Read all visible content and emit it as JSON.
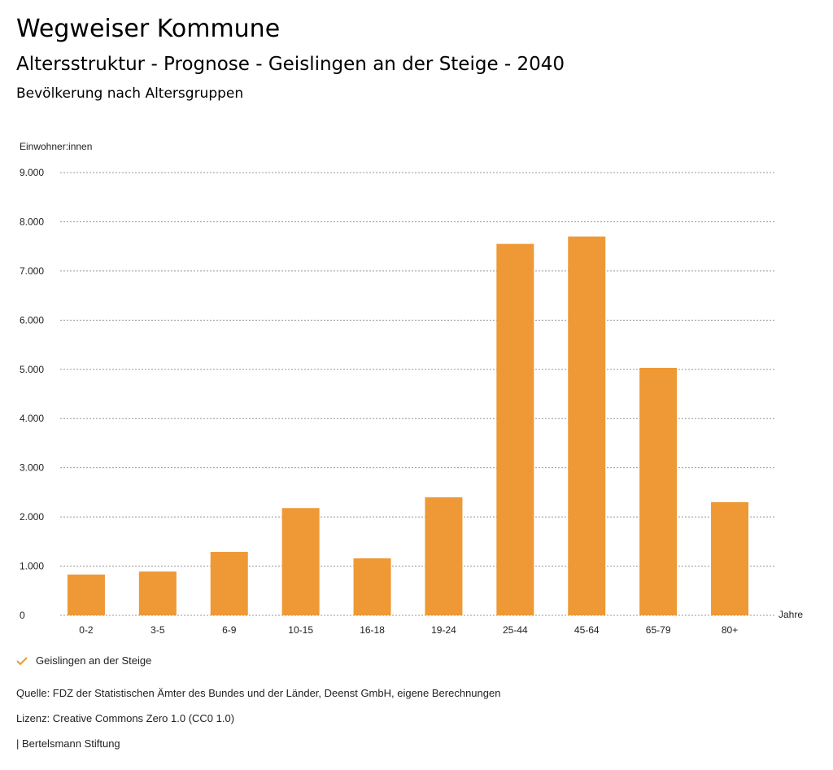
{
  "header": {
    "title": "Wegweiser Kommune",
    "subtitle": "Altersstruktur - Prognose - Geislingen an der Steige - 2040",
    "chart_heading": "Bevölkerung nach Altersgruppen"
  },
  "chart_data": {
    "type": "bar",
    "title": "Bevölkerung nach Altersgruppen",
    "xlabel": "Jahre",
    "ylabel": "Einwohner:innen",
    "categories": [
      "0-2",
      "3-5",
      "6-9",
      "10-15",
      "16-18",
      "19-24",
      "25-44",
      "45-64",
      "65-79",
      "80+"
    ],
    "series": [
      {
        "name": "Geislingen an der Steige",
        "values": [
          830,
          890,
          1290,
          2180,
          1160,
          2400,
          7550,
          7700,
          5030,
          2300
        ]
      }
    ],
    "ylim": [
      0,
      9000
    ],
    "yticks": [
      0,
      1000,
      2000,
      3000,
      4000,
      5000,
      6000,
      7000,
      8000,
      9000
    ],
    "ytick_labels": [
      "0",
      "1.000",
      "2.000",
      "3.000",
      "4.000",
      "5.000",
      "6.000",
      "7.000",
      "8.000",
      "9.000"
    ],
    "grid": true,
    "legend_position": "bottom-left",
    "color": "#ee9936"
  },
  "footer": {
    "source": "Quelle: FDZ der Statistischen Ämter des Bundes und der Länder, Deenst GmbH, eigene Berechnungen",
    "license": "Lizenz: Creative Commons Zero 1.0 (CC0 1.0)",
    "credit": "| Bertelsmann Stiftung"
  }
}
